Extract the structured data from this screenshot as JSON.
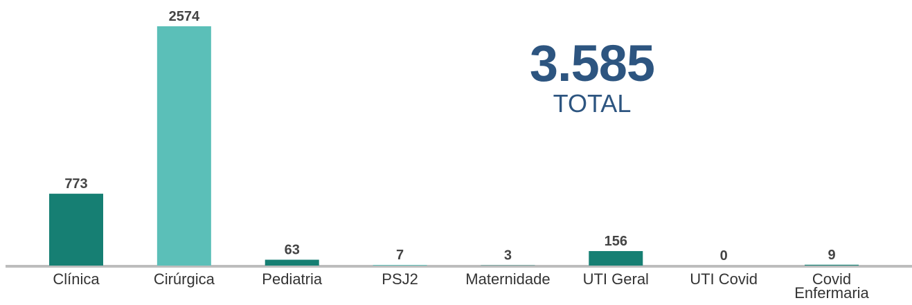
{
  "chart_data": {
    "type": "bar",
    "categories": [
      "Clínica",
      "Cirúrgica",
      "Pediatria",
      "PSJ2",
      "Maternidade",
      "UTI Geral",
      "UTI Covid",
      "Covid Enfermaria"
    ],
    "values": [
      773,
      2574,
      63,
      7,
      3,
      156,
      0,
      9
    ],
    "colors": [
      "#167f73",
      "#5bbfb8",
      "#167f73",
      "#5bbfb8",
      "#167f73",
      "#167f73",
      "#167f73",
      "#167f73"
    ],
    "total": {
      "value_label": "3.585",
      "label": "TOTAL"
    }
  }
}
